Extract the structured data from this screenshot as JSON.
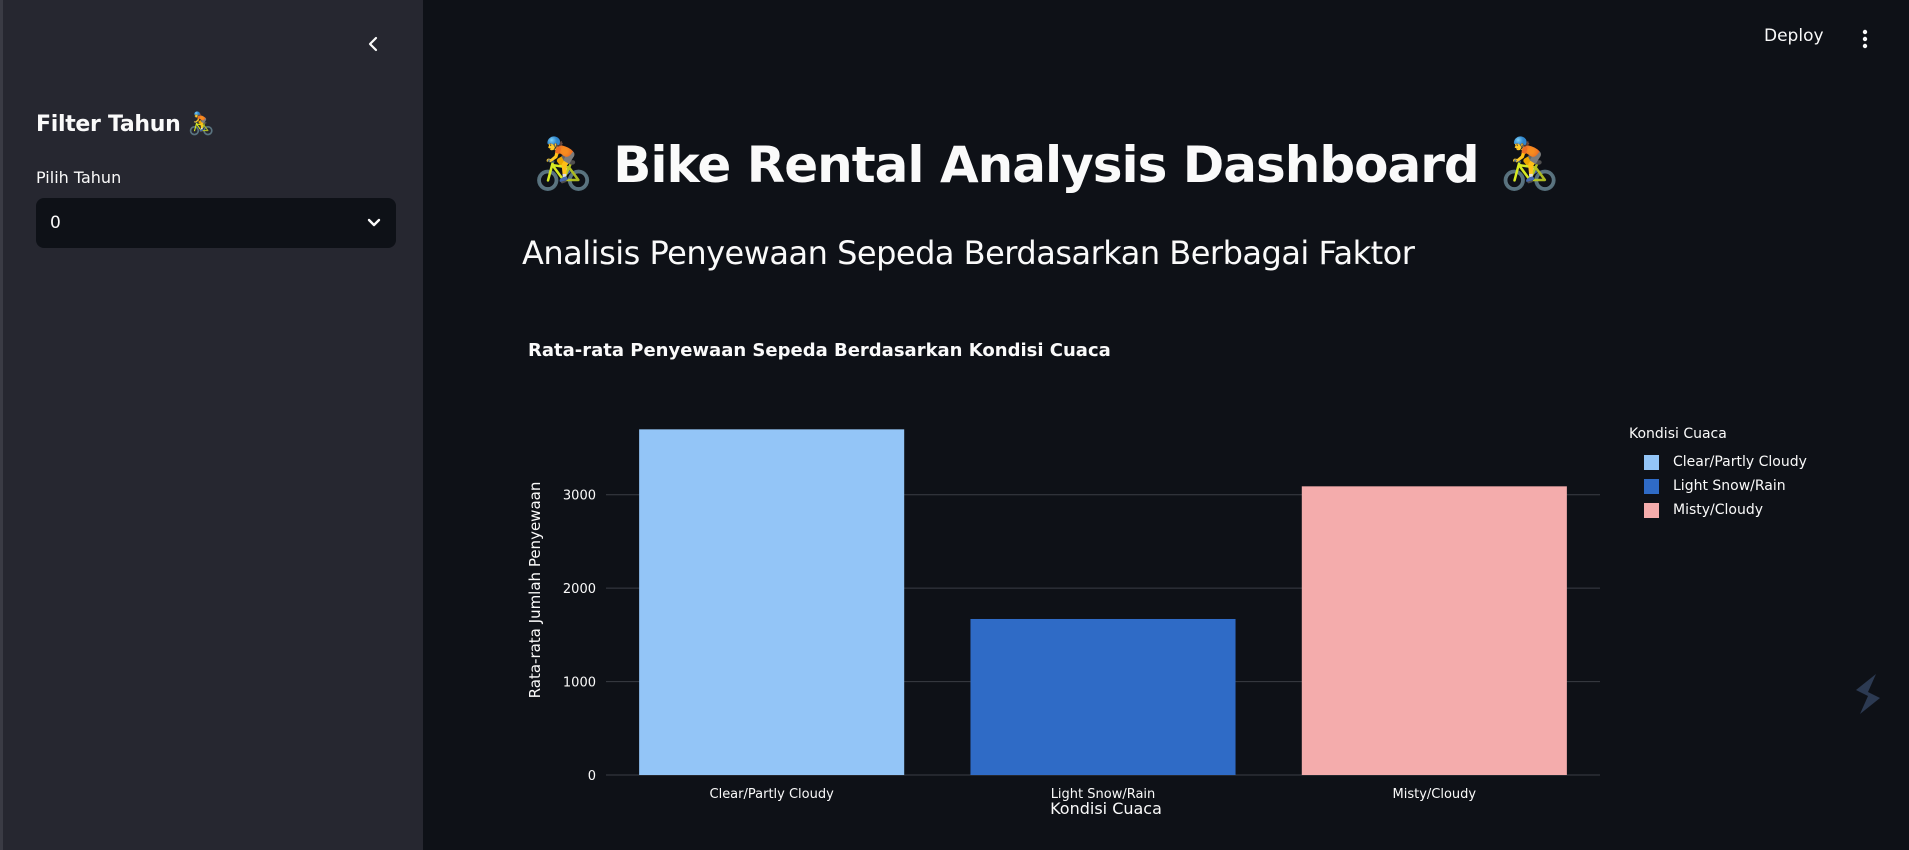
{
  "sidebar": {
    "header": "Filter Tahun 🚴",
    "select_label": "Pilih Tahun",
    "select_value": "0"
  },
  "topbar": {
    "deploy_label": "Deploy"
  },
  "main": {
    "title": "Bike Rental Analysis Dashboard",
    "title_emoji": "🚴",
    "subtitle": "Analisis Penyewaan Sepeda Berdasarkan Berbagai Faktor"
  },
  "chart_data": {
    "type": "bar",
    "title": "Rata-rata Penyewaan Sepeda Berdasarkan Kondisi Cuaca",
    "xlabel": "Kondisi Cuaca",
    "ylabel": "Rata-rata Jumlah Penyewaan",
    "categories": [
      "Clear/Partly Cloudy",
      "Light Snow/Rain",
      "Misty/Cloudy"
    ],
    "values": [
      3700,
      1670,
      3090
    ],
    "colors": [
      "#93c5f7",
      "#2f6bc6",
      "#f4acac"
    ],
    "ylim": [
      0,
      3800
    ],
    "yticks": [
      0,
      1000,
      2000,
      3000
    ],
    "grid": true,
    "legend_title": "Kondisi Cuaca",
    "legend_position": "top-right"
  },
  "theme": {
    "background": "#0e1117",
    "sidebar_bg": "#262730",
    "text": "#fafafa",
    "grid": "#3a3d45"
  }
}
